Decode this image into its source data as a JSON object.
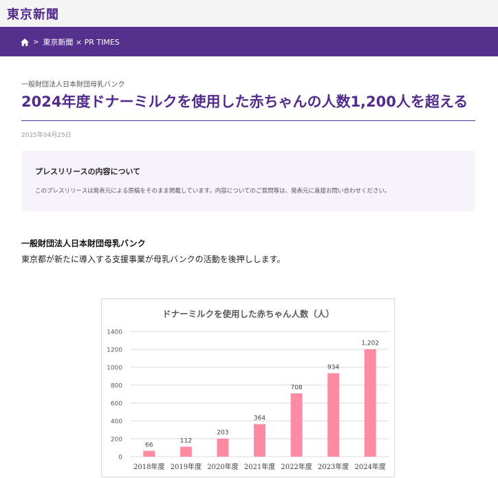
{
  "site": {
    "logo_text": "東京新聞"
  },
  "breadcrumb": {
    "home_icon": "home-icon",
    "separator": ">",
    "current": "東京新聞 × PR TIMES"
  },
  "article": {
    "org_small": "一般財団法人日本財団母乳バンク",
    "title": "2024年度ドナーミルクを使用した赤ちゃんの人数1,200人を超える",
    "date": "2025年04月25日",
    "notice": {
      "title": "プレスリリースの内容について",
      "body": "このプレスリリースは発表元による原稿をそのまま掲載しています。内容についてのご質問等は、発表元に直接お問い合わせください。"
    },
    "org_bold": "一般財団法人日本財団母乳バンク",
    "lede": "東京都が新たに導入する支援事業が母乳バンクの活動を後押しします。"
  },
  "colors": {
    "brand_purple": "#55308d",
    "bar_pink": "#ff8ba3",
    "notice_bg": "#f8f2fd"
  },
  "chart_data": {
    "type": "bar",
    "title": "ドナーミルクを使用した赤ちゃん人数（人）",
    "categories": [
      "2018年度",
      "2019年度",
      "2020年度",
      "2021年度",
      "2022年度",
      "2023年度",
      "2024年度"
    ],
    "values": [
      66,
      112,
      203,
      364,
      708,
      934,
      1202
    ],
    "value_labels": [
      "66",
      "112",
      "203",
      "364",
      "708",
      "934",
      "1,202"
    ],
    "y_ticks": [
      "0",
      "200",
      "400",
      "600",
      "800",
      "1000",
      "1200",
      "1400"
    ],
    "ylim": [
      0,
      1400
    ],
    "grid": true,
    "legend": "none"
  }
}
